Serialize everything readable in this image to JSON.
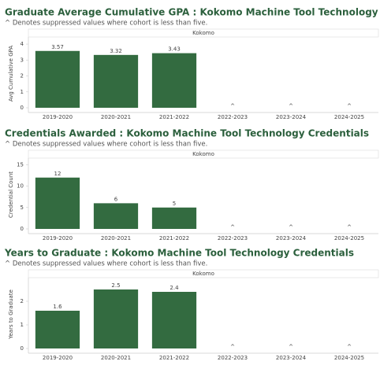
{
  "chart_data": [
    {
      "type": "bar",
      "title": "Graduate Average Cumulative GPA : Kokomo Machine Tool Technology Credentials",
      "subtitle": "^ Denotes suppressed values where cohort is less than five.",
      "panel": "Kokomo",
      "ylabel": "Avg Cumulative GPA",
      "color": "#336b40",
      "categories": [
        "2019-2020",
        "2020-2021",
        "2021-2022",
        "2022-2023",
        "2023-2024",
        "2024-2025"
      ],
      "values": [
        3.57,
        3.32,
        3.43,
        null,
        null,
        null
      ],
      "value_labels": [
        "3.57",
        "3.32",
        "3.43",
        "^",
        "^",
        "^"
      ],
      "ylim": [
        0,
        4.3
      ],
      "yticks": [
        0,
        1,
        2,
        3,
        4
      ]
    },
    {
      "type": "bar",
      "title": "Credentials Awarded : Kokomo Machine Tool Technology Credentials",
      "subtitle": "^ Denotes suppressed values where cohort is less than five.",
      "panel": "Kokomo",
      "ylabel": "Credential Count",
      "color": "#336b40",
      "categories": [
        "2019-2020",
        "2020-2021",
        "2021-2022",
        "2022-2023",
        "2023-2024",
        "2024-2025"
      ],
      "values": [
        12,
        6,
        5,
        null,
        null,
        null
      ],
      "value_labels": [
        "12",
        "6",
        "5",
        "^",
        "^",
        "^"
      ],
      "ylim": [
        0,
        16
      ],
      "yticks": [
        0,
        5,
        10,
        15
      ]
    },
    {
      "type": "bar",
      "title": "Years to Graduate : Kokomo Machine Tool Technology Credentials",
      "subtitle": "^ Denotes suppressed values where cohort is less than five.",
      "panel": "Kokomo",
      "ylabel": "Years to Graduate",
      "color": "#336b40",
      "categories": [
        "2019-2020",
        "2020-2021",
        "2021-2022",
        "2022-2023",
        "2023-2024",
        "2024-2025"
      ],
      "values": [
        1.6,
        2.5,
        2.4,
        null,
        null,
        null
      ],
      "value_labels": [
        "1.6",
        "2.5",
        "2.4",
        "^",
        "^",
        "^"
      ],
      "ylim": [
        0,
        2.9
      ],
      "yticks": [
        0,
        1,
        2
      ]
    }
  ]
}
